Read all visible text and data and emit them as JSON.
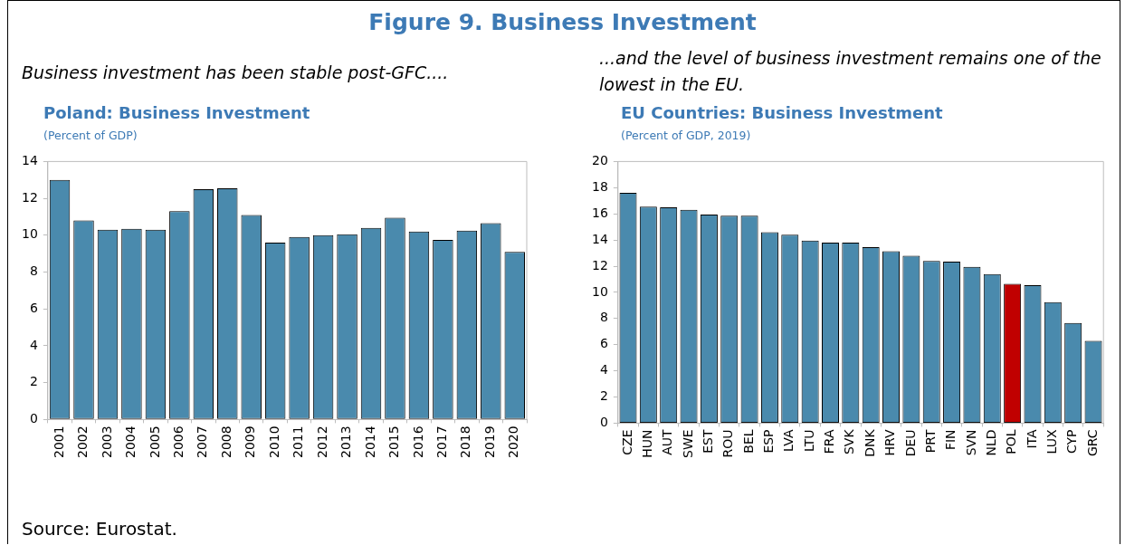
{
  "chart_data": [
    {
      "type": "bar",
      "title": "Poland: Business Investment",
      "subtitle": "(Percent of GDP)",
      "annotations": [
        "Figure 9. Business Investment",
        "Business investment has been stable post-GFC...."
      ],
      "categories": [
        "2001",
        "2002",
        "2003",
        "2004",
        "2005",
        "2006",
        "2007",
        "2008",
        "2009",
        "2010",
        "2011",
        "2012",
        "2013",
        "2014",
        "2015",
        "2016",
        "2017",
        "2018",
        "2019",
        "2020"
      ],
      "values": [
        13.0,
        10.8,
        10.3,
        10.35,
        10.3,
        11.3,
        12.5,
        12.55,
        11.1,
        9.6,
        9.9,
        10.0,
        10.05,
        10.4,
        10.95,
        10.2,
        9.75,
        10.25,
        10.65,
        9.1
      ],
      "color": "#4a8aad",
      "ylim": [
        0,
        14
      ],
      "yticks": [
        0,
        2,
        4,
        6,
        8,
        10,
        12,
        14
      ],
      "grid": false,
      "legend": false
    },
    {
      "type": "bar",
      "title": "EU Countries: Business Investment",
      "subtitle": "(Percent of GDP, 2019)",
      "annotations": [
        "...and the level of business investment remains one of the lowest in the EU.",
        "Source: Eurostat."
      ],
      "categories": [
        "CZE",
        "HUN",
        "AUT",
        "SWE",
        "EST",
        "ROU",
        "BEL",
        "ESP",
        "LVA",
        "LTU",
        "FRA",
        "SVK",
        "DNK",
        "HRV",
        "DEU",
        "PRT",
        "FIN",
        "SVN",
        "NLD",
        "POL",
        "ITA",
        "LUX",
        "CYP",
        "GRC"
      ],
      "values": [
        17.6,
        16.55,
        16.5,
        16.3,
        15.95,
        15.85,
        15.85,
        14.6,
        14.4,
        13.95,
        13.8,
        13.8,
        13.45,
        13.15,
        12.8,
        12.4,
        12.35,
        11.95,
        11.4,
        10.65,
        10.55,
        9.25,
        7.65,
        6.3
      ],
      "colors": [
        "#4a8aad",
        "#4a8aad",
        "#4a8aad",
        "#4a8aad",
        "#4a8aad",
        "#4a8aad",
        "#4a8aad",
        "#4a8aad",
        "#4a8aad",
        "#4a8aad",
        "#4a8aad",
        "#4a8aad",
        "#4a8aad",
        "#4a8aad",
        "#4a8aad",
        "#4a8aad",
        "#4a8aad",
        "#4a8aad",
        "#4a8aad",
        "#c00000",
        "#4a8aad",
        "#4a8aad",
        "#4a8aad",
        "#4a8aad"
      ],
      "ylim": [
        0,
        20
      ],
      "yticks": [
        0,
        2,
        4,
        6,
        8,
        10,
        12,
        14,
        16,
        18,
        20
      ],
      "grid": false,
      "legend": false
    }
  ]
}
